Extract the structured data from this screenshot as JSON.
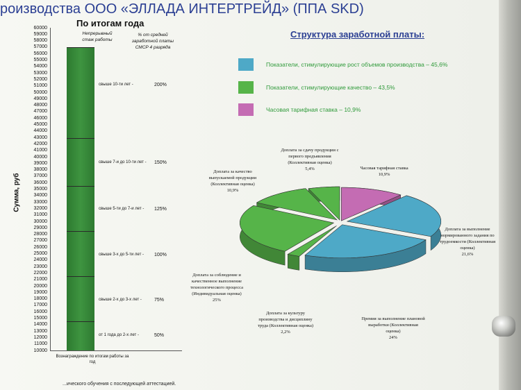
{
  "header": {
    "title": "роизводства ООО «ЭЛЛАДА ИНТЕРТРЕЙД» (ППА SKD)"
  },
  "left_chart": {
    "title": "По итогам года",
    "y_label": "Сумма, руб",
    "column_heads": {
      "experience": "Непрерывный стаж работы",
      "percent": "% от средней заработной платы СМСР 4 разряда"
    },
    "x_label": "Вознаграждение по итогам работы за год",
    "segments": [
      {
        "label": "от 1 года до 2-х лет",
        "percent": "50%"
      },
      {
        "label": "свыше 2-х до 3-х лет",
        "percent": "75%"
      },
      {
        "label": "свыше 3-х до 5-ти лет",
        "percent": "100%"
      },
      {
        "label": "свыше 5-ти до 7-и лет",
        "percent": "125%"
      },
      {
        "label": "свыше 7-и до 10-ти лет",
        "percent": "150%"
      },
      {
        "label": "свыше 10-ти лет",
        "percent": "200%"
      }
    ]
  },
  "chart_data": [
    {
      "type": "bar",
      "title": "По итогам года",
      "ylabel": "Сумма, руб",
      "categories": [
        "Вознаграждение по итогам работы за год"
      ],
      "values": [
        57000
      ],
      "segment_boundaries": [
        14500,
        21500,
        28500,
        35500,
        42900,
        57000
      ],
      "ylim": [
        10000,
        60000
      ],
      "yticks": [
        10000,
        11000,
        12000,
        13000,
        14000,
        15000,
        16000,
        17000,
        18000,
        19000,
        20000,
        21000,
        22000,
        23000,
        24000,
        25000,
        26000,
        27000,
        28000,
        29000,
        30000,
        31000,
        32000,
        33000,
        34000,
        35000,
        36000,
        37000,
        38000,
        39000,
        40000,
        41000,
        42000,
        43000,
        44000,
        45000,
        46000,
        47000,
        48000,
        49000,
        50000,
        51000,
        52000,
        53000,
        54000,
        55000,
        56000,
        57000,
        58000,
        59000,
        60000
      ]
    },
    {
      "type": "pie",
      "slices": [
        {
          "label": "Часовая тарифная ставка",
          "value": 10.9,
          "value_text": "10,9%",
          "color": "#c46cb3"
        },
        {
          "label": "Доплата за выполнение нормированного задания по трудоемкости (Коллективная оценка)",
          "value": 21.6,
          "value_text": "21,6%",
          "color": "#4ea9c7"
        },
        {
          "label": "Премия за выполнение плановой выработки (Коллективная оценка)",
          "value": 24,
          "value_text": "24%",
          "color": "#4ea9c7"
        },
        {
          "label": "Доплата за культуру производства и дисциплину труда (Коллективная оценка)",
          "value": 2.2,
          "value_text": "2,2%",
          "color": "#56b449"
        },
        {
          "label": "Доплата за соблюдение и качественное выполнение технологического процесса (Индивидуальная оценка)",
          "value": 25,
          "value_text": "25%",
          "color": "#56b449"
        },
        {
          "label": "Доплата за качество выпускаемой продукции (Коллективная оценка)",
          "value": 10.9,
          "value_text": "10,9%",
          "color": "#56b449"
        },
        {
          "label": "Доплата за сдачу продукции с первого предъявления (Коллективная оценка)",
          "value": 5.4,
          "value_text": "5,4%",
          "color": "#56b449"
        }
      ]
    }
  ],
  "right_section": {
    "title": "Структура заработной платы:",
    "legend": [
      {
        "text": "Показатели, стимулирующие рост объемов производства – 45,6%",
        "color": "#4ea9c7"
      },
      {
        "text": "Показатели, стимулирующие качество – 43,5%",
        "color": "#56b449"
      },
      {
        "text": "Часовая тарифная ставка – 10,9%",
        "color": "#c46cb3"
      }
    ]
  },
  "footnote": "...ического обучения с последующей аттестацией."
}
